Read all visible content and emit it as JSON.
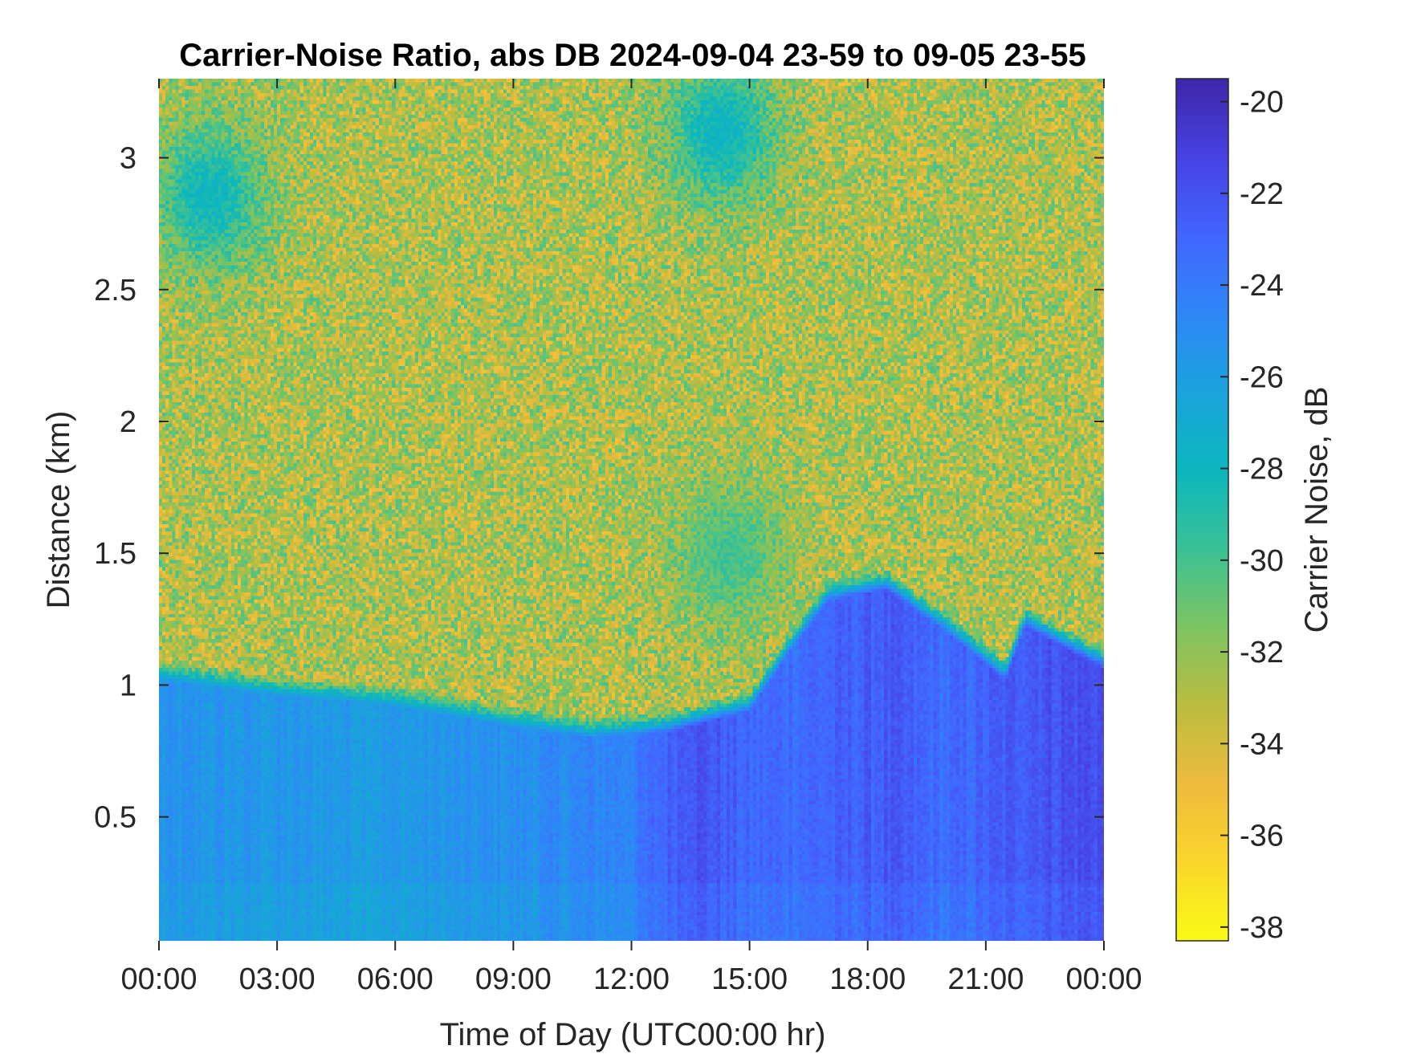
{
  "chart_data": {
    "type": "heatmap",
    "title": "Carrier-Noise Ratio, abs DB 2024-09-04 23-59 to 09-05 23-55",
    "xlabel": "Time of Day (UTC00:00 hr)",
    "ylabel": "Distance (km)",
    "colorbar_label": "Carrier Noise, dB",
    "x_range_hours": [
      0,
      24
    ],
    "y_range_km": [
      0.03,
      3.3
    ],
    "x_ticks": [
      {
        "value": 0,
        "label": "00:00"
      },
      {
        "value": 3,
        "label": "03:00"
      },
      {
        "value": 6,
        "label": "06:00"
      },
      {
        "value": 9,
        "label": "09:00"
      },
      {
        "value": 12,
        "label": "12:00"
      },
      {
        "value": 15,
        "label": "15:00"
      },
      {
        "value": 18,
        "label": "18:00"
      },
      {
        "value": 21,
        "label": "21:00"
      },
      {
        "value": 24,
        "label": "00:00"
      }
    ],
    "y_ticks": [
      {
        "value": 0.5,
        "label": "0.5"
      },
      {
        "value": 1,
        "label": "1"
      },
      {
        "value": 1.5,
        "label": "1.5"
      },
      {
        "value": 2,
        "label": "2"
      },
      {
        "value": 2.5,
        "label": "2.5"
      },
      {
        "value": 3,
        "label": "3"
      }
    ],
    "color_range_db": [
      -38.3,
      -19.5
    ],
    "color_ticks": [
      {
        "value": -20,
        "label": "-20"
      },
      {
        "value": -22,
        "label": "-22"
      },
      {
        "value": -24,
        "label": "-24"
      },
      {
        "value": -26,
        "label": "-26"
      },
      {
        "value": -28,
        "label": "-28"
      },
      {
        "value": -30,
        "label": "-30"
      },
      {
        "value": -32,
        "label": "-32"
      },
      {
        "value": -34,
        "label": "-34"
      },
      {
        "value": -36,
        "label": "-36"
      },
      {
        "value": -38,
        "label": "-38"
      }
    ],
    "colormap": [
      "#3e26a8",
      "#4742e3",
      "#4265fe",
      "#2e87f7",
      "#1aa3dc",
      "#0cb6be",
      "#3ac195",
      "#7dc461",
      "#bbbc40",
      "#eebb3d",
      "#fad62c",
      "#f9fb15"
    ],
    "background_noise_db": -32.8,
    "boundary_layer_top_km": [
      {
        "hour": 0,
        "km": 1.02
      },
      {
        "hour": 3,
        "km": 0.96
      },
      {
        "hour": 6,
        "km": 0.92
      },
      {
        "hour": 9,
        "km": 0.84
      },
      {
        "hour": 11,
        "km": 0.8
      },
      {
        "hour": 13,
        "km": 0.82
      },
      {
        "hour": 15,
        "km": 0.9
      },
      {
        "hour": 16,
        "km": 1.12
      },
      {
        "hour": 17,
        "km": 1.32
      },
      {
        "hour": 18.5,
        "km": 1.36
      },
      {
        "hour": 20,
        "km": 1.2
      },
      {
        "hour": 21.5,
        "km": 1.02
      },
      {
        "hour": 22,
        "km": 1.22
      },
      {
        "hour": 23.5,
        "km": 1.1
      },
      {
        "hour": 24,
        "km": 1.06
      }
    ],
    "boundary_layer_db": [
      {
        "hour": 0,
        "db": -25.5
      },
      {
        "hour": 6,
        "db": -25.8
      },
      {
        "hour": 9,
        "db": -25.2
      },
      {
        "hour": 12,
        "db": -24.3
      },
      {
        "hour": 13.5,
        "db": -21.8
      },
      {
        "hour": 15,
        "db": -23.2
      },
      {
        "hour": 17,
        "db": -23.0
      },
      {
        "hour": 18.5,
        "db": -22.4
      },
      {
        "hour": 20,
        "db": -23.4
      },
      {
        "hour": 22,
        "db": -22.2
      },
      {
        "hour": 24,
        "db": -21.6
      }
    ],
    "aerosol_patches": [
      {
        "hour": 1.3,
        "km": 2.85,
        "db": -26.5
      },
      {
        "hour": 14.3,
        "km": 3.1,
        "db": -26.2
      },
      {
        "hour": 14.5,
        "km": 1.5,
        "db": -29.0
      }
    ]
  }
}
